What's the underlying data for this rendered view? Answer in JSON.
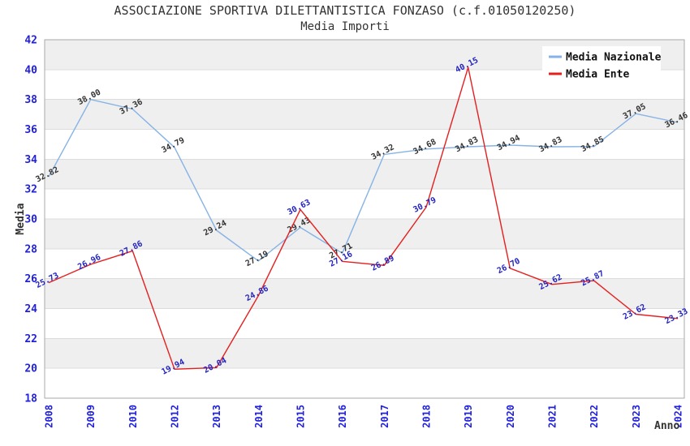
{
  "title": "ASSOCIAZIONE SPORTIVA DILETTANTISTICA FONZASO (c.f.01050120250)",
  "subtitle": "Media Importi",
  "chart_data": {
    "type": "line",
    "title": "ASSOCIAZIONE SPORTIVA DILETTANTISTICA FONZASO (c.f.01050120250)",
    "subtitle": "Media Importi",
    "xlabel": "Anno",
    "ylabel": "Media",
    "ylim": [
      18,
      42
    ],
    "ytick_step": 2,
    "grid": "horizontal-bands",
    "legend_position": "top-right",
    "categories": [
      "2008",
      "2009",
      "2010",
      "2012",
      "2013",
      "2014",
      "2015",
      "2016",
      "2017",
      "2018",
      "2019",
      "2020",
      "2021",
      "2022",
      "2023",
      "2024"
    ],
    "series": [
      {
        "name": "Media Nazionale",
        "color": "#86b3e6",
        "label_color": "#333333",
        "values": [
          32.82,
          38.0,
          37.36,
          34.79,
          29.24,
          27.19,
          29.43,
          27.71,
          34.32,
          34.68,
          34.83,
          34.94,
          34.83,
          34.85,
          37.05,
          36.46
        ]
      },
      {
        "name": "Media Ente",
        "color": "#e41f1f",
        "label_color": "#2424c0",
        "values": [
          25.73,
          26.96,
          27.86,
          19.94,
          20.04,
          24.86,
          30.63,
          27.16,
          26.89,
          30.79,
          40.15,
          26.7,
          25.62,
          25.87,
          23.62,
          23.33
        ]
      }
    ],
    "colors": {
      "tick_label": "#2020dd",
      "axis_title": "#333333",
      "band_light": "#ffffff",
      "band_dark": "#efefef",
      "gridline": "#dcdcdc",
      "border": "#aaaaaa",
      "background": "#ffffff",
      "legend_bg": "#ffffff",
      "legend_text": "#111111"
    }
  }
}
